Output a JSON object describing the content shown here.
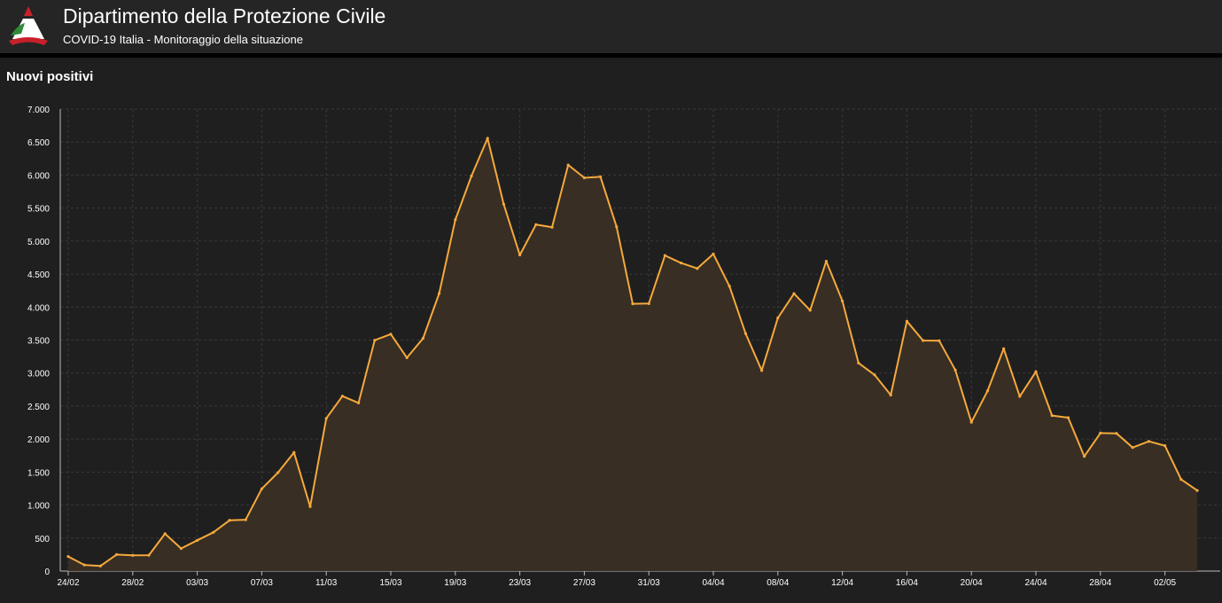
{
  "header": {
    "title": "Dipartimento della Protezione Civile",
    "subtitle": "COVID-19 Italia - Monitoraggio della situazione"
  },
  "panel": {
    "title": "Nuovi positivi"
  },
  "colors": {
    "line": "#f5a93c",
    "area": "#3a2f24",
    "grid": "#3a3a3a",
    "axis_text": "#ffffff",
    "logo_red": "#c8202a",
    "logo_green": "#2e8b3a",
    "logo_white": "#ffffff"
  },
  "chart_data": {
    "type": "area",
    "title": "Nuovi positivi",
    "xlabel": "",
    "ylabel": "",
    "ylim": [
      0,
      7000
    ],
    "y_ticks": [
      0,
      500,
      1000,
      1500,
      2000,
      2500,
      3000,
      3500,
      4000,
      4500,
      5000,
      5500,
      6000,
      6500,
      7000
    ],
    "y_tick_labels": [
      "0",
      "500",
      "1.000",
      "1.500",
      "2.000",
      "2.500",
      "3.000",
      "3.500",
      "4.000",
      "4.500",
      "5.000",
      "5.500",
      "6.000",
      "6.500",
      "7.000"
    ],
    "x_tick_labels": [
      "24/02",
      "28/02",
      "03/03",
      "07/03",
      "11/03",
      "15/03",
      "19/03",
      "23/03",
      "27/03",
      "31/03",
      "04/04",
      "08/04",
      "12/04",
      "16/04",
      "20/04",
      "24/04",
      "28/04",
      "02/05"
    ],
    "grid": true,
    "x": [
      "24/02",
      "25/02",
      "26/02",
      "27/02",
      "28/02",
      "29/02",
      "01/03",
      "02/03",
      "03/03",
      "04/03",
      "05/03",
      "06/03",
      "07/03",
      "08/03",
      "09/03",
      "10/03",
      "11/03",
      "12/03",
      "13/03",
      "14/03",
      "15/03",
      "16/03",
      "17/03",
      "18/03",
      "19/03",
      "20/03",
      "21/03",
      "22/03",
      "23/03",
      "24/03",
      "25/03",
      "26/03",
      "27/03",
      "28/03",
      "29/03",
      "30/03",
      "31/03",
      "01/04",
      "02/04",
      "03/04",
      "04/04",
      "05/04",
      "06/04",
      "07/04",
      "08/04",
      "09/04",
      "10/04",
      "11/04",
      "12/04",
      "13/04",
      "14/04",
      "15/04",
      "16/04",
      "17/04",
      "18/04",
      "19/04",
      "20/04",
      "21/04",
      "22/04",
      "23/04",
      "24/04",
      "25/04",
      "26/04",
      "27/04",
      "28/04",
      "29/04",
      "30/04",
      "01/05",
      "02/05",
      "03/05",
      "04/05"
    ],
    "series": [
      {
        "values": [
          221,
          93,
          78,
          250,
          238,
          240,
          566,
          342,
          466,
          587,
          769,
          778,
          1247,
          1492,
          1797,
          977,
          2313,
          2651,
          2547,
          3497,
          3590,
          3233,
          3526,
          4207,
          5322,
          5986,
          6557,
          5560,
          4789,
          5249,
          5210,
          6153,
          5959,
          5974,
          5217,
          4050,
          4053,
          4782,
          4668,
          4585,
          4805,
          4316,
          3599,
          3039,
          3836,
          4204,
          3951,
          4694,
          4092,
          3153,
          2972,
          2667,
          3786,
          3493,
          3491,
          3047,
          2256,
          2729,
          3370,
          2646,
          3021,
          2357,
          2324,
          1739,
          2091,
          2086,
          1872,
          1965,
          1900,
          1389,
          1221
        ]
      }
    ]
  }
}
